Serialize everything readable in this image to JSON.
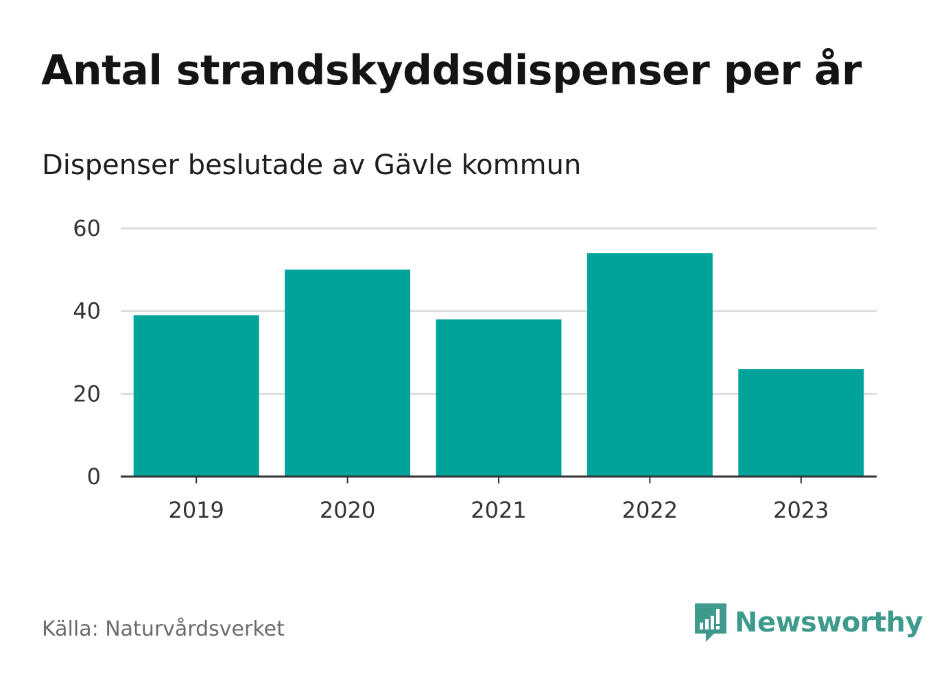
{
  "title": "Antal strandskyddsdispenser per år",
  "subtitle": "Dispenser beslutade av Gävle kommun",
  "source": "Källa: Naturvårdsverket",
  "brand": {
    "name": "Newsworthy",
    "icon": "newsworthy-logo-icon"
  },
  "colors": {
    "bar": "#00a39a",
    "grid": "#dddddd",
    "axis": "#333333",
    "brand": "#3f9a8e"
  },
  "chart_data": {
    "type": "bar",
    "title": "Antal strandskyddsdispenser per år",
    "subtitle": "Dispenser beslutade av Gävle kommun",
    "categories": [
      "2019",
      "2020",
      "2021",
      "2022",
      "2023"
    ],
    "values": [
      39,
      50,
      38,
      54,
      26
    ],
    "xlabel": "",
    "ylabel": "",
    "ylim": [
      0,
      60
    ],
    "yticks": [
      0,
      20,
      40,
      60
    ],
    "grid": true,
    "legend": "none"
  }
}
